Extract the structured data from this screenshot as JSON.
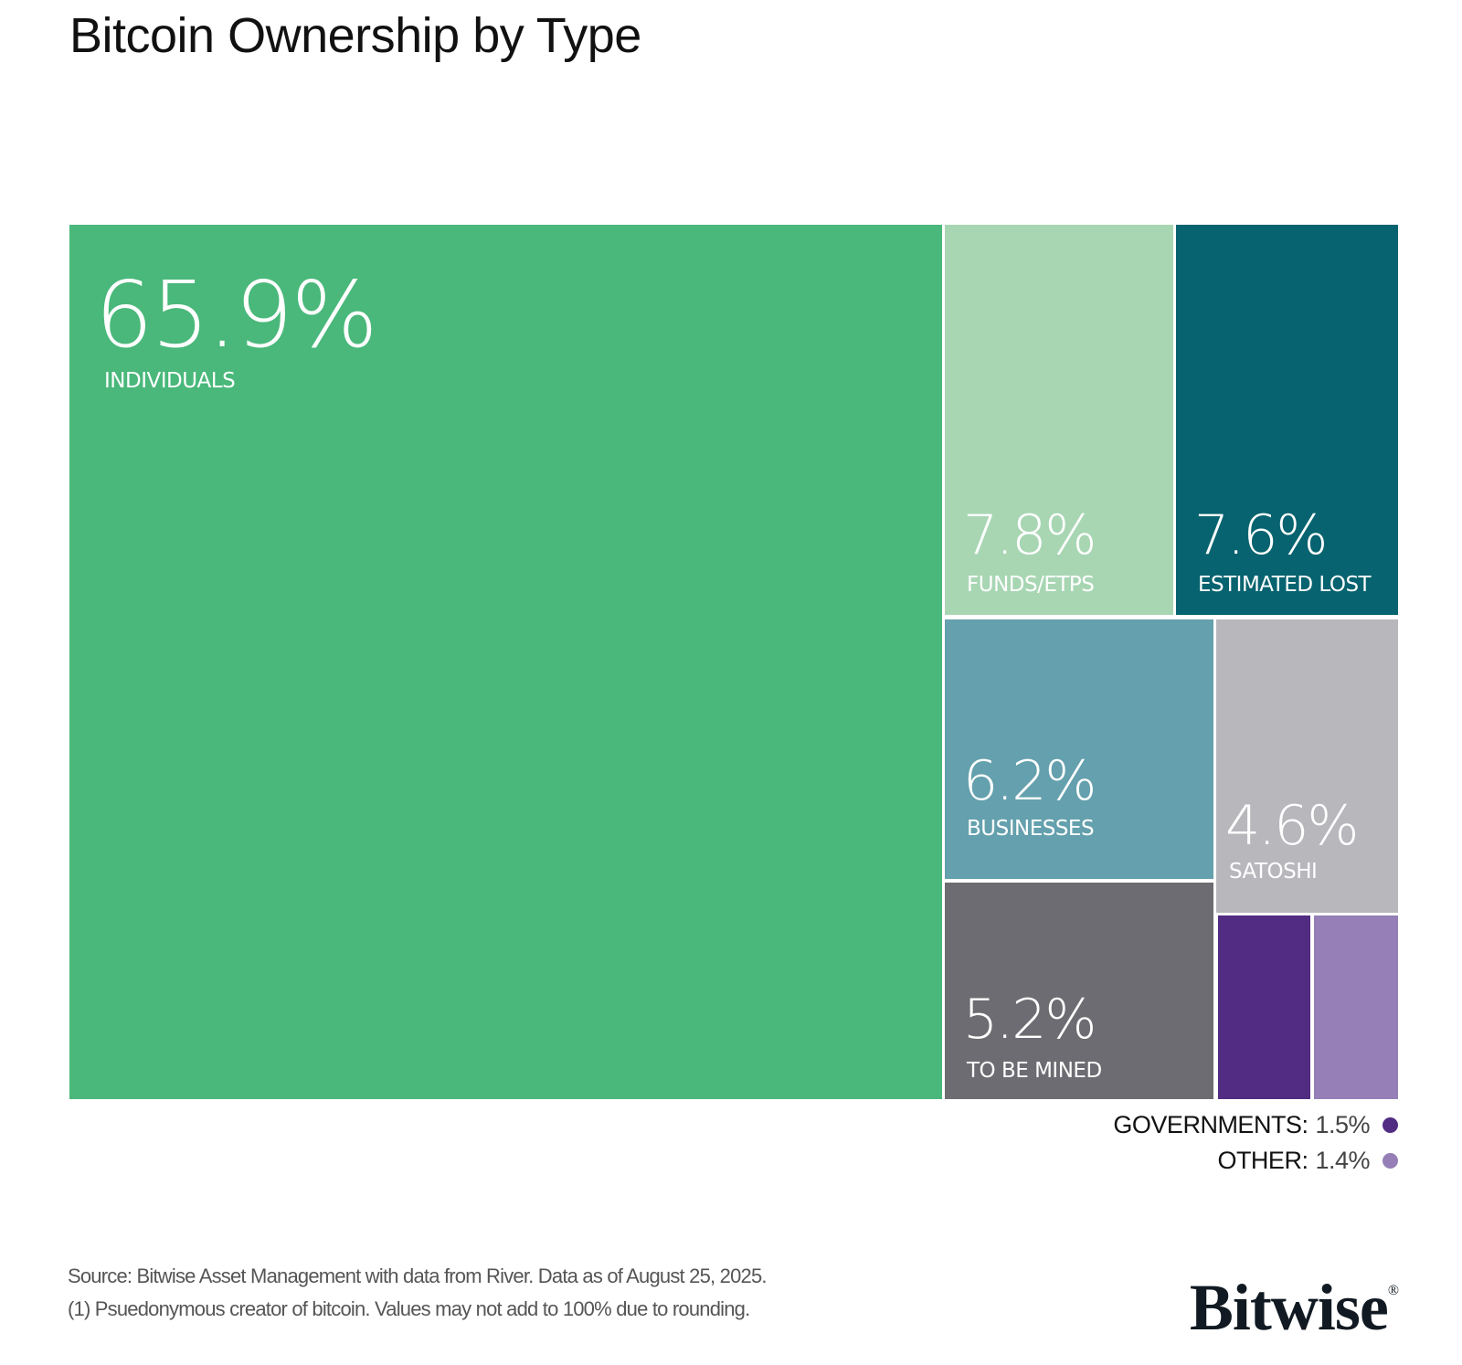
{
  "chart_data": {
    "type": "treemap",
    "title": "Bitcoin Ownership by Type",
    "unit": "%",
    "items": [
      {
        "id": "ind",
        "label": "INDIVIDUALS",
        "value": 65.9,
        "display": "65.9%",
        "color": "#49b87a"
      },
      {
        "id": "funds",
        "label": "FUNDS/ETPS",
        "value": 7.8,
        "display": "7.8%",
        "color": "#a8d6b3"
      },
      {
        "id": "lost",
        "label": "ESTIMATED LOST",
        "value": 7.6,
        "display": "7.6%",
        "color": "#07636f"
      },
      {
        "id": "bus",
        "label": "BUSINESSES",
        "value": 6.2,
        "display": "6.2%",
        "color": "#64a0ad"
      },
      {
        "id": "mined",
        "label": "TO BE MINED",
        "value": 5.2,
        "display": "5.2%",
        "color": "#6d6c72"
      },
      {
        "id": "sat",
        "label": "SATOSHI",
        "value": 4.6,
        "display": "4.6%",
        "color": "#b8b7bc"
      },
      {
        "id": "gov",
        "label": "GOVERNMENTS",
        "value": 1.5,
        "display": "1.5%",
        "color": "#522c82"
      },
      {
        "id": "other",
        "label": "OTHER",
        "value": 1.4,
        "display": "1.4%",
        "color": "#957fb6"
      }
    ],
    "legend": [
      {
        "label": "GOVERNMENTS:",
        "value": "1.5%",
        "color": "#522c82"
      },
      {
        "label": "OTHER:",
        "value": "1.4%",
        "color": "#957fb6"
      }
    ]
  },
  "footer": {
    "source": "Source: Bitwise Asset Management with data from River. Data as of August 25, 2025.",
    "note": "(1) Psuedonymous creator of bitcoin. Values may not add to 100% due to rounding.",
    "logo": "Bitwise",
    "logo_mark": "®"
  }
}
